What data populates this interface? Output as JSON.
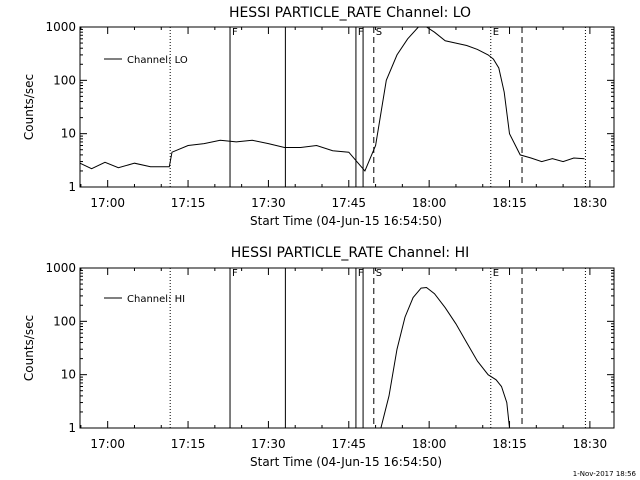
{
  "footer_text": "1-Nov-2017 18:56",
  "chart_data": [
    {
      "type": "line",
      "title": "HESSI PARTICLE_RATE Channel: LO",
      "xlabel": "Start Time (04-Jun-15 16:54:50)",
      "ylabel": "Counts/sec",
      "legend": "Channel: LO",
      "legend_position": "top-left",
      "y_scale": "log",
      "ylim": [
        1,
        1000
      ],
      "ytick_labels": [
        "1",
        "10",
        "100",
        "1000"
      ],
      "xlim": [
        "16:54:50",
        "18:34:30"
      ],
      "xtick_labels": [
        "17:00",
        "17:15",
        "17:30",
        "17:45",
        "18:00",
        "18:15",
        "18:30"
      ],
      "vlines": [
        {
          "time": "17:11:40",
          "style": "dotted",
          "label": ""
        },
        {
          "time": "17:22:50",
          "style": "solid",
          "label": "F"
        },
        {
          "time": "17:33:10",
          "style": "solid",
          "label": ""
        },
        {
          "time": "17:46:20",
          "style": "solid",
          "label": "F"
        },
        {
          "time": "17:47:40",
          "style": "solid",
          "label": ""
        },
        {
          "time": "17:49:40",
          "style": "dashed",
          "label": "S"
        },
        {
          "time": "18:11:30",
          "style": "dotted",
          "label": "E"
        },
        {
          "time": "18:17:20",
          "style": "dashed",
          "label": ""
        },
        {
          "time": "18:29:10",
          "style": "dotted",
          "label": ""
        }
      ],
      "series": [
        {
          "name": "Channel: LO",
          "x": [
            "16:54:50",
            "16:57:00",
            "16:59:30",
            "17:02:00",
            "17:05:00",
            "17:08:00",
            "17:11:30",
            "17:12:00",
            "17:15:00",
            "17:18:00",
            "17:21:00",
            "17:24:00",
            "17:27:00",
            "17:30:00",
            "17:33:00",
            "17:36:00",
            "17:39:00",
            "17:42:00",
            "17:45:00",
            "17:46:30",
            "17:48:00",
            "17:50:00",
            "17:52:00",
            "17:54:00",
            "17:56:00",
            "17:58:00",
            "17:59:30",
            "18:01:00",
            "18:03:00",
            "18:05:00",
            "18:07:00",
            "18:09:00",
            "18:11:00",
            "18:12:00",
            "18:13:00",
            "18:14:00",
            "18:15:00",
            "18:17:00",
            "18:19:00",
            "18:21:00",
            "18:23:00",
            "18:25:00",
            "18:27:00",
            "18:29:00"
          ],
          "y": [
            2.8,
            2.2,
            2.9,
            2.3,
            2.8,
            2.4,
            2.4,
            4.5,
            6.0,
            6.5,
            7.5,
            7.0,
            7.5,
            6.5,
            5.5,
            5.5,
            6.0,
            4.8,
            4.5,
            3.0,
            2.0,
            6.0,
            100,
            300,
            600,
            1000,
            1000,
            800,
            550,
            500,
            450,
            380,
            300,
            250,
            170,
            60,
            10,
            4.0,
            3.5,
            3.0,
            3.4,
            3.0,
            3.5,
            3.4
          ]
        }
      ]
    },
    {
      "type": "line",
      "title": "HESSI PARTICLE_RATE Channel: HI",
      "xlabel": "Start Time (04-Jun-15 16:54:50)",
      "ylabel": "Counts/sec",
      "legend": "Channel: HI",
      "legend_position": "top-left",
      "y_scale": "log",
      "ylim": [
        1,
        1000
      ],
      "ytick_labels": [
        "1",
        "10",
        "100",
        "1000"
      ],
      "xlim": [
        "16:54:50",
        "18:34:30"
      ],
      "xtick_labels": [
        "17:00",
        "17:15",
        "17:30",
        "17:45",
        "18:00",
        "18:15",
        "18:30"
      ],
      "vlines": [
        {
          "time": "17:11:40",
          "style": "dotted",
          "label": ""
        },
        {
          "time": "17:22:50",
          "style": "solid",
          "label": "F"
        },
        {
          "time": "17:33:10",
          "style": "solid",
          "label": ""
        },
        {
          "time": "17:46:20",
          "style": "solid",
          "label": "F"
        },
        {
          "time": "17:47:40",
          "style": "solid",
          "label": ""
        },
        {
          "time": "17:49:40",
          "style": "dashed",
          "label": "S"
        },
        {
          "time": "18:11:30",
          "style": "dotted",
          "label": "E"
        },
        {
          "time": "18:17:20",
          "style": "dashed",
          "label": ""
        },
        {
          "time": "18:29:10",
          "style": "dotted",
          "label": ""
        }
      ],
      "series": [
        {
          "name": "Channel: HI",
          "x": [
            "17:51:00",
            "17:52:30",
            "17:54:00",
            "17:55:30",
            "17:57:00",
            "17:58:30",
            "17:59:30",
            "18:01:00",
            "18:03:00",
            "18:05:00",
            "18:07:00",
            "18:09:00",
            "18:11:00",
            "18:12:30",
            "18:13:30",
            "18:14:30",
            "18:15:00"
          ],
          "y": [
            1,
            4,
            30,
            120,
            280,
            420,
            430,
            330,
            180,
            90,
            40,
            18,
            10,
            8,
            6,
            3,
            1
          ]
        }
      ]
    }
  ]
}
